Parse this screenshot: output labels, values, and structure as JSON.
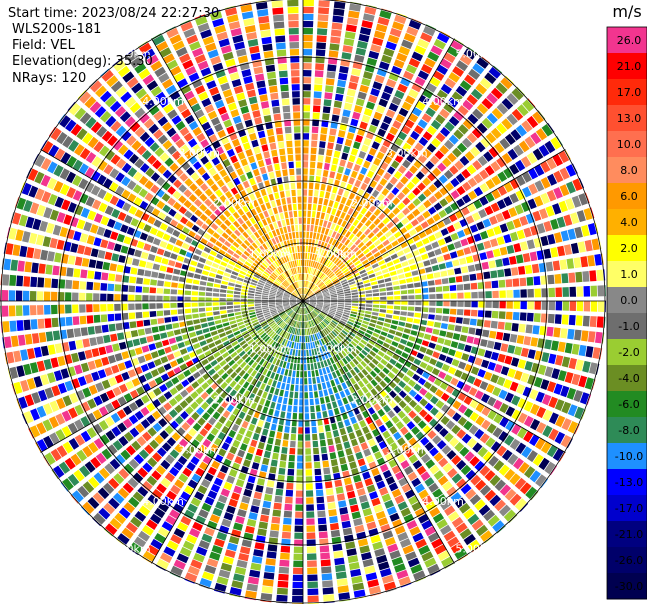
{
  "header": {
    "start_time": "Start time: 2023/08/24 22:27:30",
    "instrument": "WLS200s-181",
    "field": "Field: VEL",
    "elevation": "Elevation(deg): 35.30",
    "nrays": "NRays: 120"
  },
  "chart_data": {
    "type": "heatmap",
    "projection": "polar-ppi",
    "field": "VEL",
    "rays": 120,
    "range_rings_km": [
      1.0,
      2.0,
      3.0,
      4.0,
      5.0
    ],
    "ring_labels": [
      "1.00km",
      "2.00km",
      "3.00km",
      "4.00km",
      "5.00km"
    ],
    "max_range_km": 5.0,
    "colorbar": {
      "unit": "m/s",
      "ticks": [
        "26.0",
        "21.0",
        "17.0",
        "13.0",
        "10.0",
        "8.0",
        "6.0",
        "4.0",
        "2.0",
        "1.0",
        "0.0",
        "-1.0",
        "-2.0",
        "-4.0",
        "-6.0",
        "-8.0",
        "-10.0",
        "-13.0",
        "-17.0",
        "-21.0",
        "-26.0",
        "-30.0"
      ],
      "colors": [
        "#f2358f",
        "#fe0001",
        "#ff2a0a",
        "#ff5030",
        "#ff6f4f",
        "#ff8c5e",
        "#ff9900",
        "#ffb000",
        "#ffff00",
        "#ffff66",
        "#888888",
        "#6e6e6e",
        "#9acd32",
        "#6b8e23",
        "#228b22",
        "#2e8b57",
        "#1e90ff",
        "#0000ff",
        "#0000cd",
        "#000080",
        "#00006a",
        "#000050"
      ]
    }
  }
}
